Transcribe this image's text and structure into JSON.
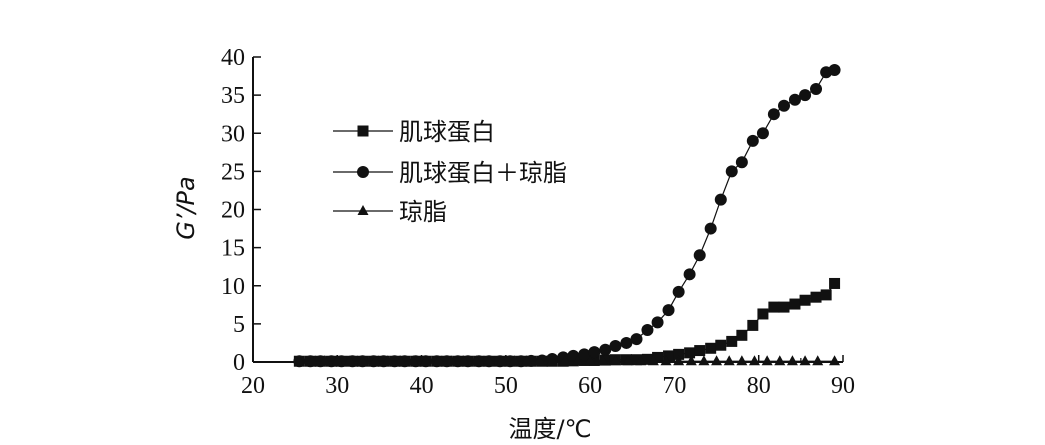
{
  "chart_data": {
    "type": "line",
    "xlabel": "温度/℃",
    "ylabel": "G’/Pa",
    "xlim": [
      20,
      90
    ],
    "ylim": [
      0,
      40
    ],
    "xticks": [
      20,
      30,
      40,
      50,
      60,
      70,
      80,
      90
    ],
    "yticks": [
      0,
      5,
      10,
      15,
      20,
      25,
      30,
      35,
      40
    ],
    "grid": false,
    "legend_position": "upper-left",
    "series": [
      {
        "name": "肌球蛋白",
        "marker": "square",
        "x": [
          25.5,
          26.8,
          28,
          29.3,
          30.5,
          31.8,
          33,
          34.3,
          35.5,
          36.8,
          38,
          39.3,
          40.5,
          41.8,
          43,
          44.3,
          45.5,
          46.8,
          48,
          49.3,
          50.5,
          51.8,
          53,
          54.3,
          55.5,
          56.8,
          58,
          59.3,
          60.5,
          61.8,
          63,
          64.3,
          65.5,
          66.8,
          68,
          69.3,
          70.5,
          71.8,
          73,
          74.3,
          75.5,
          76.8,
          78,
          79.3,
          80.5,
          81.8,
          83,
          84.3,
          85.5,
          86.8,
          88,
          89
        ],
        "y": [
          0.1,
          0.1,
          0.1,
          0.1,
          0.1,
          0.1,
          0.1,
          0.1,
          0.1,
          0.1,
          0.1,
          0.1,
          0.1,
          0.1,
          0.1,
          0.1,
          0.1,
          0.1,
          0.1,
          0.1,
          0.1,
          0.1,
          0.1,
          0.1,
          0.1,
          0.1,
          0.15,
          0.2,
          0.2,
          0.25,
          0.3,
          0.3,
          0.3,
          0.35,
          0.6,
          0.8,
          1.0,
          1.2,
          1.5,
          1.8,
          2.2,
          2.7,
          3.5,
          4.8,
          6.3,
          7.2,
          7.2,
          7.6,
          8.1,
          8.5,
          8.8,
          10.3
        ]
      },
      {
        "name": "肌球蛋白＋琼脂",
        "marker": "circle",
        "x": [
          25.5,
          26.8,
          28,
          29.3,
          30.5,
          31.8,
          33,
          34.3,
          35.5,
          36.8,
          38,
          39.3,
          40.5,
          41.8,
          43,
          44.3,
          45.5,
          46.8,
          48,
          49.3,
          50.5,
          51.8,
          53,
          54.3,
          55.5,
          56.8,
          58,
          59.3,
          60.5,
          61.8,
          63,
          64.3,
          65.5,
          66.8,
          68,
          69.3,
          70.5,
          71.8,
          73,
          74.3,
          75.5,
          76.8,
          78,
          79.3,
          80.5,
          81.8,
          83,
          84.3,
          85.5,
          86.8,
          88,
          89
        ],
        "y": [
          0.1,
          0.1,
          0.1,
          0.1,
          0.1,
          0.1,
          0.1,
          0.1,
          0.1,
          0.1,
          0.1,
          0.1,
          0.1,
          0.1,
          0.1,
          0.1,
          0.1,
          0.1,
          0.1,
          0.1,
          0.1,
          0.1,
          0.15,
          0.2,
          0.4,
          0.6,
          0.8,
          1.0,
          1.3,
          1.6,
          2.1,
          2.5,
          3.0,
          4.2,
          5.2,
          6.8,
          9.2,
          11.5,
          14.0,
          17.5,
          21.3,
          25.0,
          26.2,
          29.0,
          30.0,
          32.5,
          33.6,
          34.4,
          35.0,
          35.8,
          38.0,
          38.3
        ]
      },
      {
        "name": "琼脂",
        "marker": "triangle",
        "x": [
          25.5,
          27,
          28.5,
          30,
          31.5,
          33,
          34.5,
          36,
          37.5,
          39,
          40.5,
          42,
          43.5,
          45,
          46.5,
          48,
          49.5,
          51,
          52.5,
          54,
          55.5,
          57,
          58.5,
          60,
          61.5,
          63,
          64.5,
          66,
          67.5,
          69,
          70.5,
          72,
          73.5,
          75,
          76.5,
          78,
          79.5,
          81,
          82.5,
          84,
          85.5,
          87,
          89
        ],
        "y": [
          0.1,
          0.1,
          0.1,
          0.1,
          0.1,
          0.1,
          0.1,
          0.1,
          0.1,
          0.1,
          0.1,
          0.1,
          0.1,
          0.1,
          0.1,
          0.1,
          0.1,
          0.1,
          0.1,
          0.1,
          0.1,
          0.1,
          0.1,
          0.1,
          0.1,
          0.1,
          0.1,
          0.1,
          0.1,
          0.1,
          0.1,
          0.1,
          0.1,
          0.1,
          0.1,
          0.1,
          0.1,
          0.1,
          0.1,
          0.1,
          0.1,
          0.1,
          0.1
        ]
      }
    ]
  }
}
